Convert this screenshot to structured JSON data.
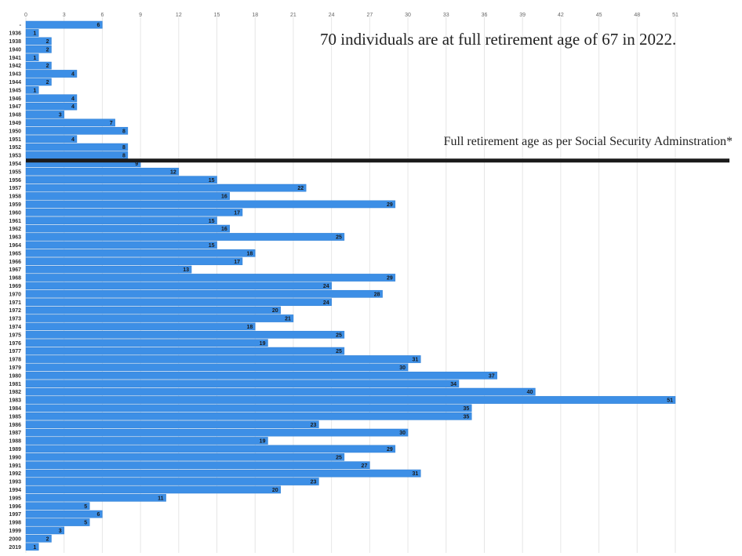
{
  "chart_data": {
    "type": "bar",
    "orientation": "horizontal",
    "categories": [
      "-",
      "1936",
      "1938",
      "1940",
      "1941",
      "1942",
      "1943",
      "1944",
      "1945",
      "1946",
      "1947",
      "1948",
      "1949",
      "1950",
      "1951",
      "1952",
      "1953",
      "1954",
      "1955",
      "1956",
      "1957",
      "1958",
      "1959",
      "1960",
      "1961",
      "1962",
      "1963",
      "1964",
      "1965",
      "1966",
      "1967",
      "1968",
      "1969",
      "1970",
      "1971",
      "1972",
      "1973",
      "1974",
      "1975",
      "1976",
      "1977",
      "1978",
      "1979",
      "1980",
      "1981",
      "1982",
      "1983",
      "1984",
      "1985",
      "1986",
      "1987",
      "1988",
      "1989",
      "1990",
      "1991",
      "1992",
      "1993",
      "1994",
      "1995",
      "1996",
      "1997",
      "1998",
      "1999",
      "2000",
      "2019"
    ],
    "values": [
      6,
      1,
      2,
      2,
      1,
      2,
      4,
      2,
      1,
      4,
      4,
      3,
      7,
      8,
      4,
      8,
      8,
      9,
      12,
      15,
      22,
      16,
      29,
      17,
      15,
      16,
      25,
      15,
      18,
      17,
      13,
      29,
      24,
      28,
      24,
      20,
      21,
      18,
      25,
      19,
      25,
      31,
      30,
      37,
      34,
      40,
      51,
      35,
      35,
      23,
      30,
      19,
      29,
      25,
      27,
      31,
      23,
      20,
      11,
      5,
      6,
      5,
      3,
      2,
      1
    ],
    "xlim": [
      0,
      51
    ],
    "xticks": [
      0,
      3,
      6,
      9,
      12,
      15,
      18,
      21,
      24,
      27,
      30,
      33,
      36,
      39,
      42,
      45,
      48,
      51
    ],
    "xticks_position": "top",
    "grid": true,
    "bar_color": "#3d8fe6",
    "reference_line": {
      "after_category": "1953",
      "color": "#1a1a1a",
      "label": "Full retirement age as per Social Security Adminstration*"
    },
    "annotation": "70 individuals are at full retirement age of 67 in 2022."
  }
}
